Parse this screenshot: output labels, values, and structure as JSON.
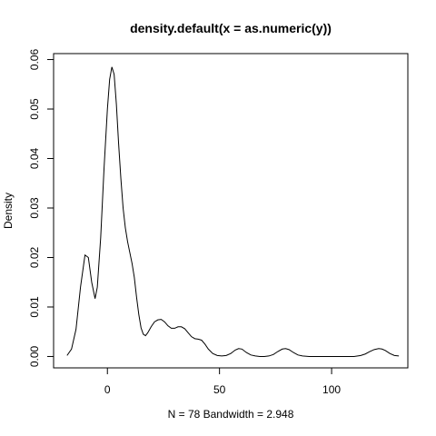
{
  "chart_data": {
    "type": "line",
    "title": "density.default(x = as.numeric(y))",
    "xlabel": "N = 78   Bandwidth = 2.948",
    "ylabel": "Density",
    "xlim": [
      -24,
      134
    ],
    "ylim": [
      -0.0023,
      0.0612
    ],
    "x_ticks": [
      0,
      50,
      100
    ],
    "y_ticks": [
      0.0,
      0.01,
      0.02,
      0.03,
      0.04,
      0.05,
      0.06
    ],
    "x_tick_labels": [
      "0",
      "50",
      "100"
    ],
    "y_tick_labels": [
      "0.00",
      "0.01",
      "0.02",
      "0.03",
      "0.04",
      "0.05",
      "0.06"
    ],
    "grid": false,
    "legend": "none",
    "line_color": "#000000",
    "series": [
      {
        "x": [
          -18.0,
          -16.0,
          -14.0,
          -12.0,
          -10.0,
          -8.5,
          -7.0,
          -5.5,
          -4.5,
          -3.0,
          -1.5,
          0.0,
          1.0,
          2.0,
          3.0,
          4.0,
          5.0,
          6.0,
          7.0,
          8.0,
          9.0,
          10.0,
          11.0,
          12.0,
          13.0,
          14.0,
          15.0,
          16.0,
          17.0,
          18.0,
          19.5,
          21.0,
          22.5,
          24.0,
          25.5,
          27.0,
          28.5,
          30.0,
          31.5,
          33.0,
          34.5,
          36.0,
          37.5,
          39.0,
          40.5,
          42.0,
          43.5,
          45.0,
          47.0,
          49.0,
          51.0,
          53.0,
          55.0,
          57.0,
          58.5,
          60.0,
          62.0,
          64.0,
          66.0,
          68.0,
          70.0,
          72.0,
          74.0,
          76.0,
          78.0,
          79.5,
          81.0,
          83.0,
          85.0,
          87.0,
          90.0,
          95.0,
          100.0,
          105.0,
          110.0,
          113.0,
          115.0,
          117.0,
          119.0,
          121.0,
          122.5,
          124.0,
          126.0,
          128.0,
          130.0
        ],
        "y": [
          0.0002,
          0.0015,
          0.0055,
          0.014,
          0.0205,
          0.02,
          0.015,
          0.0117,
          0.014,
          0.024,
          0.038,
          0.05,
          0.056,
          0.0585,
          0.057,
          0.051,
          0.043,
          0.036,
          0.03,
          0.026,
          0.0232,
          0.021,
          0.0188,
          0.016,
          0.012,
          0.0085,
          0.0058,
          0.0045,
          0.0042,
          0.0048,
          0.006,
          0.007,
          0.0074,
          0.0075,
          0.007,
          0.0062,
          0.0057,
          0.0057,
          0.006,
          0.006,
          0.0056,
          0.0048,
          0.004,
          0.0036,
          0.0035,
          0.0033,
          0.0025,
          0.0015,
          0.0006,
          0.0002,
          0.0001,
          0.0002,
          0.0006,
          0.0013,
          0.0016,
          0.0015,
          0.0008,
          0.0003,
          0.0001,
          0.0,
          0.0,
          0.0001,
          0.0004,
          0.001,
          0.0015,
          0.0016,
          0.0014,
          0.0008,
          0.0003,
          0.0001,
          0.0,
          0.0,
          0.0,
          0.0,
          0.0,
          0.0002,
          0.0005,
          0.001,
          0.0014,
          0.0016,
          0.0015,
          0.0012,
          0.0006,
          0.0002,
          0.0001
        ]
      }
    ]
  }
}
